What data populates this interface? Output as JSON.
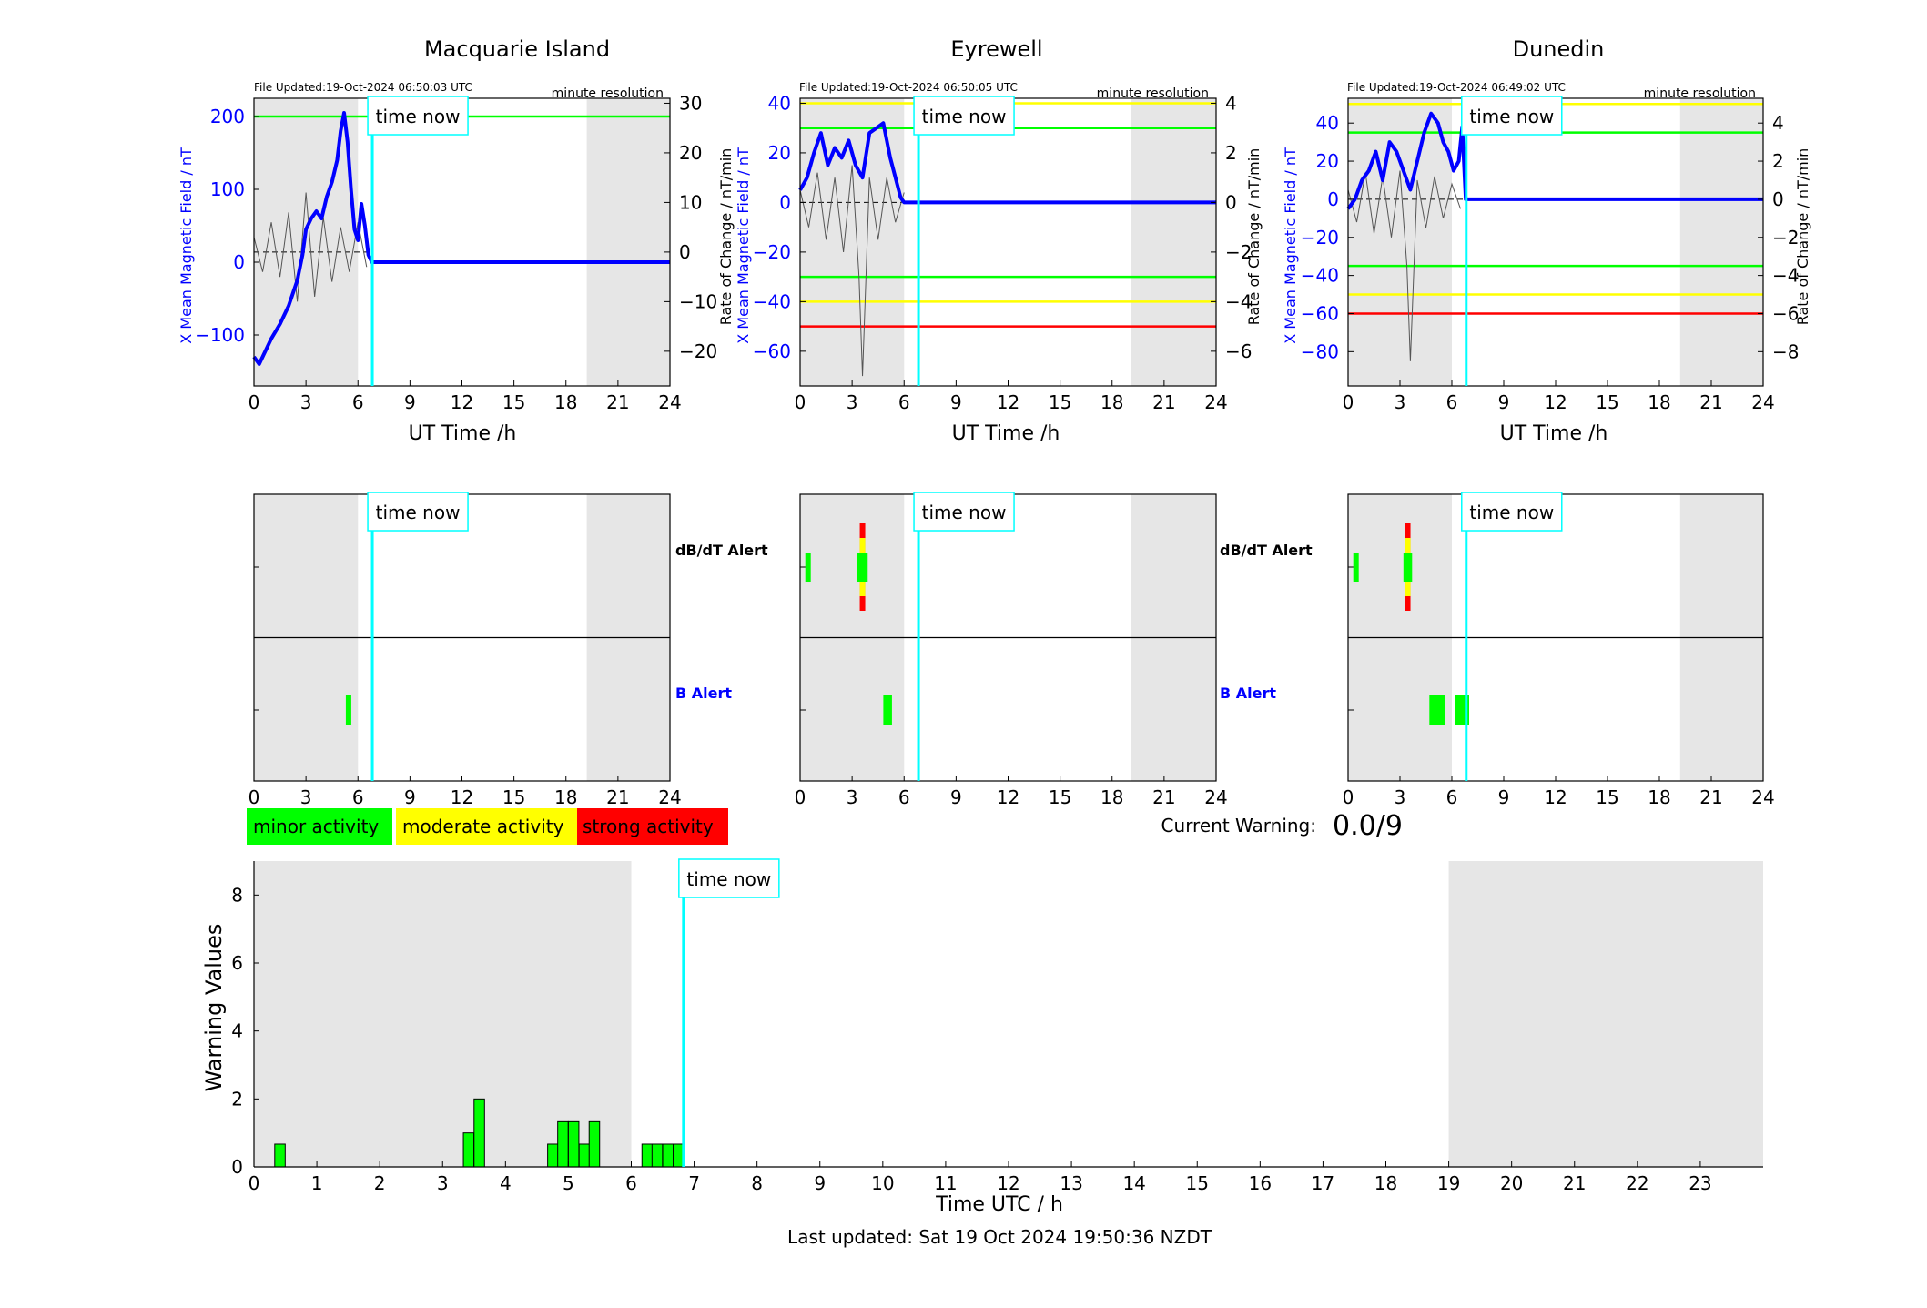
{
  "time_now_label": "time now",
  "current_warning_label": "Current Warning:",
  "current_warning_value": "0.0/9",
  "footer": "Last updated: Sat 19 Oct 2024 19:50:36 NZDT",
  "legend": [
    {
      "label": "minor activity",
      "color": "#00ff00"
    },
    {
      "label": "moderate activity",
      "color": "#ffff00"
    },
    {
      "label": "strong activity",
      "color": "#ff0000"
    }
  ],
  "colors": {
    "night_shade": "#e6e6e6",
    "x_field": "#0000ff",
    "rate": "#555555",
    "time_now": "#00ffff",
    "green_threshold": "#00ff00",
    "yellow_threshold": "#ffff00",
    "red_threshold": "#ff0000"
  },
  "chart_data": [
    {
      "type": "line",
      "title": "Macquarie Island",
      "file_updated": "File Updated:19-Oct-2024 06:50:03 UTC",
      "resolution": "minute resolution",
      "xlabel": "UT Time /h",
      "ylabel_left": "X Mean Magnetic Field / nT",
      "ylabel_right": "Rate of Change / nT/min",
      "xlim": [
        0,
        24
      ],
      "xticks": [
        0,
        3,
        6,
        9,
        12,
        15,
        18,
        21,
        24
      ],
      "ylim_left": [
        -170,
        225
      ],
      "yticks_left": [
        -100,
        0,
        100,
        200
      ],
      "ylim_right": [
        -27,
        31
      ],
      "yticks_right": [
        -20,
        -10,
        0,
        10,
        20,
        30
      ],
      "night": [
        [
          0,
          6
        ],
        [
          19.2,
          24
        ]
      ],
      "time_now": 6.83,
      "thresholds": [
        {
          "value": 200,
          "color": "green"
        }
      ],
      "x_field": {
        "t": [
          0,
          0.3,
          0.6,
          1.0,
          1.5,
          2.0,
          2.5,
          2.8,
          3.0,
          3.3,
          3.6,
          3.9,
          4.2,
          4.5,
          4.8,
          5.0,
          5.2,
          5.4,
          5.6,
          5.8,
          6.0,
          6.2,
          6.4,
          6.6,
          6.8,
          24
        ],
        "v": [
          -130,
          -140,
          -125,
          -105,
          -85,
          -60,
          -25,
          10,
          45,
          60,
          70,
          60,
          90,
          110,
          140,
          180,
          205,
          165,
          100,
          45,
          30,
          80,
          50,
          10,
          0,
          0
        ]
      },
      "rate": {
        "t": [
          0,
          0.5,
          1.0,
          1.5,
          2.0,
          2.5,
          3.0,
          3.5,
          4.0,
          4.5,
          5.0,
          5.5,
          6.0,
          6.5
        ],
        "v": [
          3,
          -4,
          6,
          -5,
          8,
          -10,
          12,
          -9,
          7,
          -6,
          5,
          -4,
          6,
          -3
        ]
      }
    },
    {
      "type": "line",
      "title": "Eyrewell",
      "file_updated": "File Updated:19-Oct-2024 06:50:05 UTC",
      "resolution": "minute resolution",
      "xlabel": "UT Time /h",
      "ylabel_left": "X Mean Magnetic Field / nT",
      "ylabel_right": "Rate of Change / nT/min",
      "xlim": [
        0,
        24
      ],
      "xticks": [
        0,
        3,
        6,
        9,
        12,
        15,
        18,
        21,
        24
      ],
      "ylim_left": [
        -74,
        42
      ],
      "yticks_left": [
        -60,
        -40,
        -20,
        0,
        20,
        40
      ],
      "ylim_right": [
        -7.4,
        4.2
      ],
      "yticks_right": [
        -6,
        -4,
        -2,
        0,
        2,
        4
      ],
      "night": [
        [
          0,
          6
        ],
        [
          19.1,
          24
        ]
      ],
      "time_now": 6.83,
      "thresholds": [
        {
          "value": 40,
          "color": "yellow"
        },
        {
          "value": 30,
          "color": "green"
        },
        {
          "value": -30,
          "color": "green"
        },
        {
          "value": -40,
          "color": "yellow"
        },
        {
          "value": -50,
          "color": "red"
        }
      ],
      "x_field": {
        "t": [
          0,
          0.4,
          0.8,
          1.2,
          1.6,
          2.0,
          2.4,
          2.8,
          3.2,
          3.6,
          4.0,
          4.4,
          4.8,
          5.2,
          5.5,
          5.8,
          6.0,
          24
        ],
        "v": [
          5,
          10,
          20,
          28,
          15,
          22,
          18,
          25,
          15,
          10,
          28,
          30,
          32,
          18,
          10,
          2,
          0,
          0
        ]
      },
      "rate": {
        "t": [
          0,
          0.5,
          1.0,
          1.5,
          2.0,
          2.5,
          3.0,
          3.4,
          3.6,
          4.0,
          4.5,
          5.0,
          5.5,
          6.0
        ],
        "v": [
          0.5,
          -1.0,
          1.2,
          -1.5,
          1.0,
          -2.0,
          1.5,
          -3.0,
          -7.0,
          1.0,
          -1.5,
          1.0,
          -0.8,
          0.4
        ]
      }
    },
    {
      "type": "line",
      "title": "Dunedin",
      "file_updated": "File Updated:19-Oct-2024 06:49:02 UTC",
      "resolution": "minute resolution",
      "xlabel": "UT Time /h",
      "ylabel_left": "X Mean Magnetic Field / nT",
      "ylabel_right": "Rate of Change / nT/min",
      "xlim": [
        0,
        24
      ],
      "xticks": [
        0,
        3,
        6,
        9,
        12,
        15,
        18,
        21,
        24
      ],
      "ylim_left": [
        -98,
        53
      ],
      "yticks_left": [
        -80,
        -60,
        -40,
        -20,
        0,
        20,
        40
      ],
      "ylim_right": [
        -9.8,
        5.3
      ],
      "yticks_right": [
        -8,
        -6,
        -4,
        -2,
        0,
        2,
        4
      ],
      "night": [
        [
          0,
          6
        ],
        [
          19.2,
          24
        ]
      ],
      "time_now": 6.83,
      "thresholds": [
        {
          "value": 50,
          "color": "yellow"
        },
        {
          "value": 35,
          "color": "green"
        },
        {
          "value": -35,
          "color": "green"
        },
        {
          "value": -50,
          "color": "yellow"
        },
        {
          "value": -60,
          "color": "red"
        }
      ],
      "x_field": {
        "t": [
          0,
          0.4,
          0.8,
          1.2,
          1.6,
          2.0,
          2.4,
          2.8,
          3.2,
          3.6,
          4.0,
          4.4,
          4.8,
          5.2,
          5.5,
          5.8,
          6.1,
          6.4,
          6.6,
          6.8,
          24
        ],
        "v": [
          -5,
          0,
          10,
          15,
          25,
          10,
          30,
          25,
          15,
          5,
          20,
          35,
          45,
          40,
          30,
          25,
          15,
          20,
          38,
          0,
          0
        ]
      },
      "rate": {
        "t": [
          0,
          0.5,
          1.0,
          1.5,
          2.0,
          2.5,
          3.0,
          3.4,
          3.6,
          4.0,
          4.5,
          5.0,
          5.5,
          6.0,
          6.5
        ],
        "v": [
          0.5,
          -1.2,
          1.4,
          -1.8,
          1.2,
          -2.0,
          1.5,
          -3.5,
          -8.5,
          1.0,
          -1.5,
          1.2,
          -1.0,
          0.8,
          -0.5
        ]
      }
    },
    {
      "type": "bar",
      "title": "",
      "xlabel": "",
      "rows": [
        "dB/dT Alert",
        "B Alert"
      ],
      "xlim": [
        0,
        24
      ],
      "xticks": [
        0,
        3,
        6,
        9,
        12,
        15,
        18,
        21,
        24
      ],
      "night": [
        [
          0,
          6
        ],
        [
          19.2,
          24
        ]
      ],
      "time_now": 6.83,
      "alerts": [
        {
          "row": "B Alert",
          "start": 5.3,
          "end": 5.6,
          "level": "minor"
        }
      ]
    },
    {
      "type": "bar",
      "title": "",
      "xlabel": "",
      "rows": [
        "dB/dT Alert",
        "B Alert"
      ],
      "xlim": [
        0,
        24
      ],
      "xticks": [
        0,
        3,
        6,
        9,
        12,
        15,
        18,
        21,
        24
      ],
      "night": [
        [
          0,
          6
        ],
        [
          19.1,
          24
        ]
      ],
      "time_now": 6.83,
      "alerts": [
        {
          "row": "dB/dT Alert",
          "start": 0.3,
          "end": 0.6,
          "level": "minor"
        },
        {
          "row": "dB/dT Alert",
          "start": 3.3,
          "end": 3.9,
          "level": "strong"
        },
        {
          "row": "B Alert",
          "start": 4.8,
          "end": 5.3,
          "level": "minor"
        }
      ]
    },
    {
      "type": "bar",
      "title": "",
      "xlabel": "",
      "rows": [
        "dB/dT Alert",
        "B Alert"
      ],
      "xlim": [
        0,
        24
      ],
      "xticks": [
        0,
        3,
        6,
        9,
        12,
        15,
        18,
        21,
        24
      ],
      "night": [
        [
          0,
          6
        ],
        [
          19.2,
          24
        ]
      ],
      "time_now": 6.83,
      "alerts": [
        {
          "row": "dB/dT Alert",
          "start": 0.3,
          "end": 0.6,
          "level": "minor"
        },
        {
          "row": "dB/dT Alert",
          "start": 3.2,
          "end": 3.7,
          "level": "strong"
        },
        {
          "row": "B Alert",
          "start": 4.7,
          "end": 5.6,
          "level": "minor"
        },
        {
          "row": "B Alert",
          "start": 6.2,
          "end": 7.0,
          "level": "minor"
        }
      ]
    },
    {
      "type": "bar",
      "title": "",
      "xlabel": "Time UTC / h",
      "ylabel": "Warning Values",
      "xlim": [
        0,
        24
      ],
      "xticks": [
        0,
        1,
        2,
        3,
        4,
        5,
        6,
        7,
        8,
        9,
        10,
        11,
        12,
        13,
        14,
        15,
        16,
        17,
        18,
        19,
        20,
        21,
        22,
        23
      ],
      "ylim": [
        0,
        9
      ],
      "yticks": [
        0,
        2,
        4,
        6,
        8
      ],
      "night": [
        [
          0,
          6
        ],
        [
          19,
          24
        ]
      ],
      "time_now": 6.83,
      "bar_width": 0.1667,
      "x": [
        0.33,
        3.33,
        3.5,
        4.67,
        4.83,
        5.0,
        5.17,
        5.33,
        6.17,
        6.33,
        6.5,
        6.67
      ],
      "values": [
        0.67,
        1.0,
        2.0,
        0.67,
        1.33,
        1.33,
        0.67,
        1.33,
        0.67,
        0.67,
        0.67,
        0.67
      ]
    }
  ]
}
